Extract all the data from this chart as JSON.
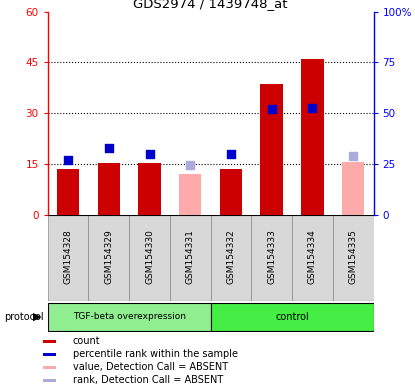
{
  "title": "GDS2974 / 1439748_at",
  "samples": [
    "GSM154328",
    "GSM154329",
    "GSM154330",
    "GSM154331",
    "GSM154332",
    "GSM154333",
    "GSM154334",
    "GSM154335"
  ],
  "bar_values": [
    13.5,
    15.2,
    15.2,
    null,
    13.5,
    38.5,
    46.0,
    null
  ],
  "bar_absent_values": [
    null,
    null,
    null,
    12.0,
    null,
    null,
    null,
    15.5
  ],
  "blue_squares": [
    27.0,
    33.0,
    30.0,
    null,
    30.0,
    52.0,
    52.5,
    null
  ],
  "blue_absent_squares": [
    null,
    null,
    null,
    24.5,
    null,
    null,
    null,
    29.0
  ],
  "left_yticks": [
    0,
    15,
    30,
    45,
    60
  ],
  "left_ylabels": [
    "0",
    "15",
    "30",
    "45",
    "60"
  ],
  "right_yticks": [
    0,
    25,
    50,
    75,
    100
  ],
  "right_ylabels": [
    "0",
    "25",
    "50",
    "75",
    "100%"
  ],
  "ylim_left": [
    0,
    60
  ],
  "ylim_right": [
    0,
    100
  ],
  "bar_color": "#cc0000",
  "bar_absent_color": "#ffaaaa",
  "blue_color": "#0000cc",
  "blue_absent_color": "#aaaadd",
  "tgf_color": "#90ee90",
  "ctrl_color": "#44ee44",
  "legend_items": [
    {
      "color": "#cc0000",
      "label": "count"
    },
    {
      "color": "#0000cc",
      "label": "percentile rank within the sample"
    },
    {
      "color": "#ffaaaa",
      "label": "value, Detection Call = ABSENT"
    },
    {
      "color": "#aaaadd",
      "label": "rank, Detection Call = ABSENT"
    }
  ]
}
